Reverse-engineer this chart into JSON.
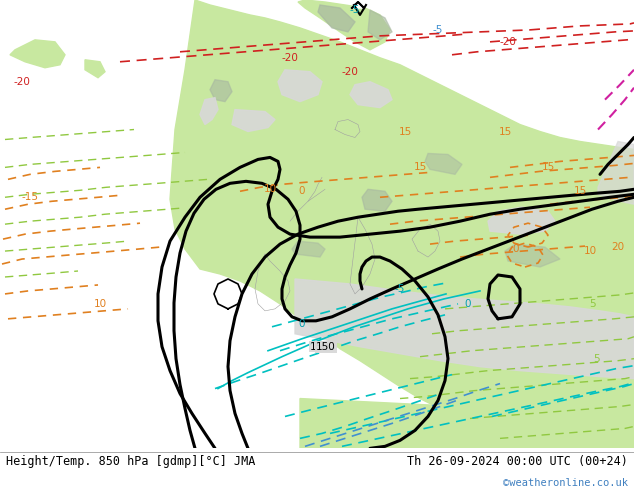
{
  "title_left": "Height/Temp. 850 hPa [gdmp][°C] JMA",
  "title_right": "Th 26-09-2024 00:00 UTC (00+24)",
  "credit": "©weatheronline.co.uk",
  "sea_color": "#d8d8d8",
  "land_color": "#c8e8a0",
  "mountain_color": "#a8b8a0",
  "fig_width": 6.34,
  "fig_height": 4.9,
  "dpi": 100
}
